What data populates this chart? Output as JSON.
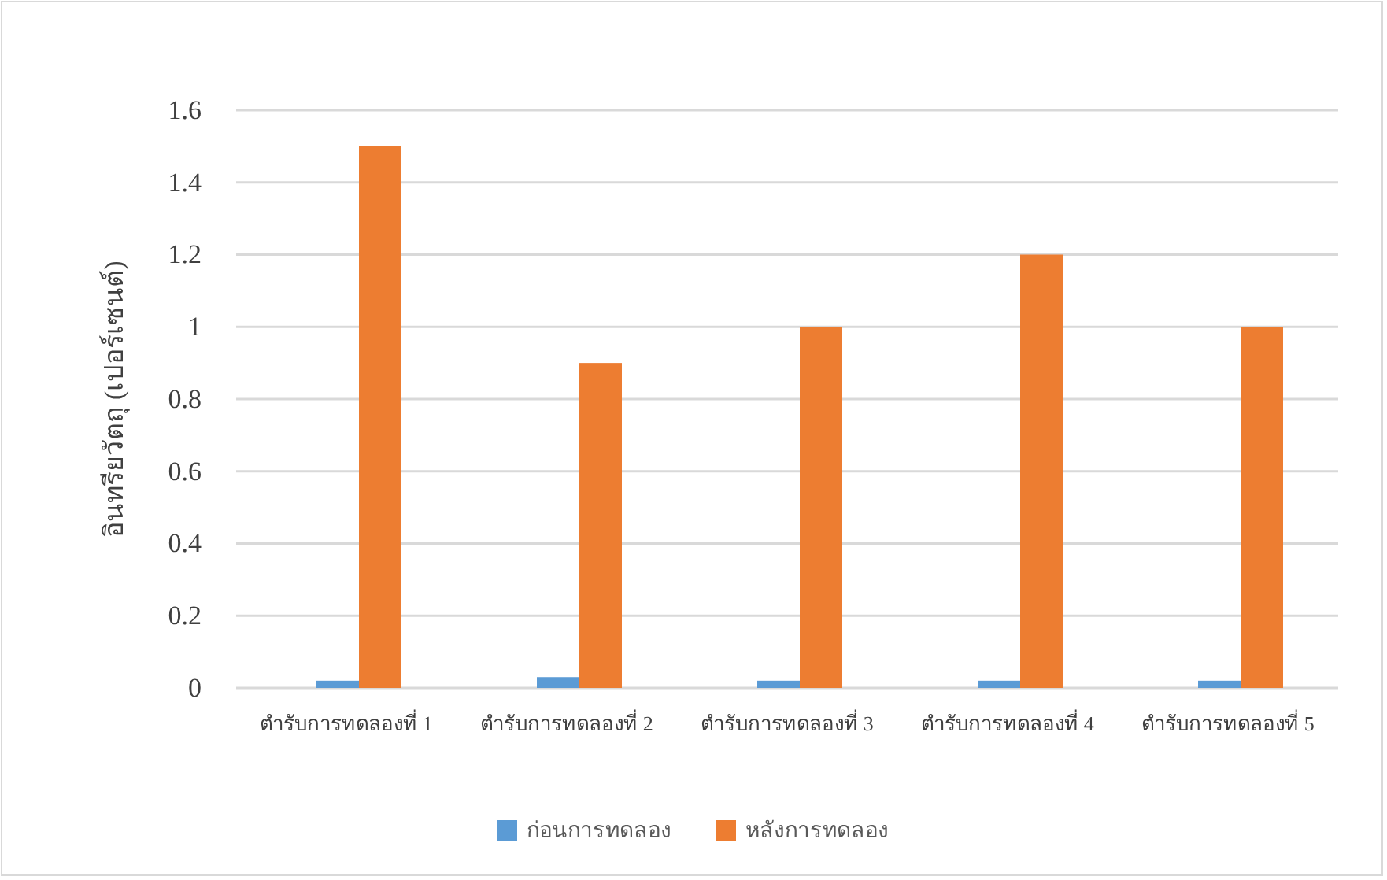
{
  "chart_data": {
    "type": "bar",
    "ylabel": "อินทรียวัตถุ (เปอร์เซนต์)",
    "categories": [
      "ตำรับการทดลองที่ 1",
      "ตำรับการทดลองที่ 2",
      "ตำรับการทดลองที่ 3",
      "ตำรับการทดลองที่ 4",
      "ตำรับการทดลองที่ 5"
    ],
    "series": [
      {
        "name": "ก่อนการทดลอง",
        "color": "#5b9bd5",
        "values": [
          0.02,
          0.03,
          0.02,
          0.02,
          0.02
        ]
      },
      {
        "name": "หลังการทดลอง",
        "color": "#ed7d31",
        "values": [
          1.5,
          0.9,
          1.0,
          1.2,
          1.0
        ]
      }
    ],
    "ylim": [
      0,
      1.6
    ],
    "yticks": [
      0,
      0.2,
      0.4,
      0.6,
      0.8,
      1,
      1.2,
      1.4,
      1.6
    ],
    "grid": "y",
    "legend": "bottom"
  }
}
